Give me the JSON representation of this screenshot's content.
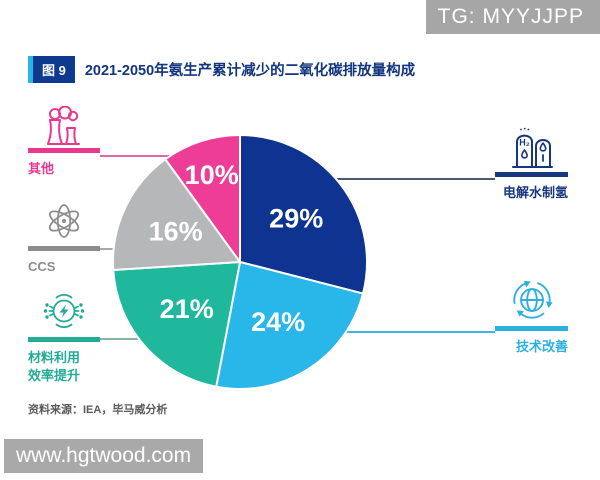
{
  "top_watermark": {
    "text": "TG: MYYJJPP"
  },
  "figure": {
    "badge": "图 9",
    "title": "2021-2050年氨生产累计减少的二氧化碳排放量构成"
  },
  "chart_data": {
    "type": "pie",
    "title": "2021-2050年氨生产累计减少的二氧化碳排放量构成",
    "direction": "clockwise",
    "start_angle_deg": 0,
    "legend_position": "sides",
    "label_color": "#ffffff",
    "slices": [
      {
        "label": "电解水制氢",
        "value": 29,
        "display": "29%",
        "color": "#0e3390"
      },
      {
        "label": "技术改善",
        "value": 24,
        "display": "24%",
        "color": "#29b6e9"
      },
      {
        "label": "材料利用效率提升",
        "value": 21,
        "display": "21%",
        "color": "#1fb89c"
      },
      {
        "label": "CCS",
        "value": 16,
        "display": "16%",
        "color": "#b6b7b9"
      },
      {
        "label": "其他",
        "value": 10,
        "display": "10%",
        "color": "#ee3d96"
      }
    ]
  },
  "legend": {
    "left": [
      {
        "label": "其他",
        "icon": "factory-icon",
        "color": "#e8398f",
        "line_color": "#d86ca4"
      },
      {
        "label": "CCS",
        "icon": "atom-icon",
        "color": "#8c8c8c",
        "line_color": "#a8a8a8"
      },
      {
        "label": "材料利用\n效率提升",
        "icon": "energy-network-icon",
        "color": "#23ab96",
        "line_color": "#84b4ac"
      }
    ],
    "right": [
      {
        "label": "电解水制氢",
        "icon": "hydrogen-tanks-icon",
        "color": "#17377f",
        "line_color": "#4a5a70"
      },
      {
        "label": "技术改善",
        "icon": "globe-sync-icon",
        "color": "#2cb0de",
        "line_color": "#39b7e2"
      }
    ]
  },
  "source": {
    "text": "资料来源：IEA，毕马威分析"
  },
  "bottom_watermark": {
    "text": "www.hgtwood.com"
  }
}
